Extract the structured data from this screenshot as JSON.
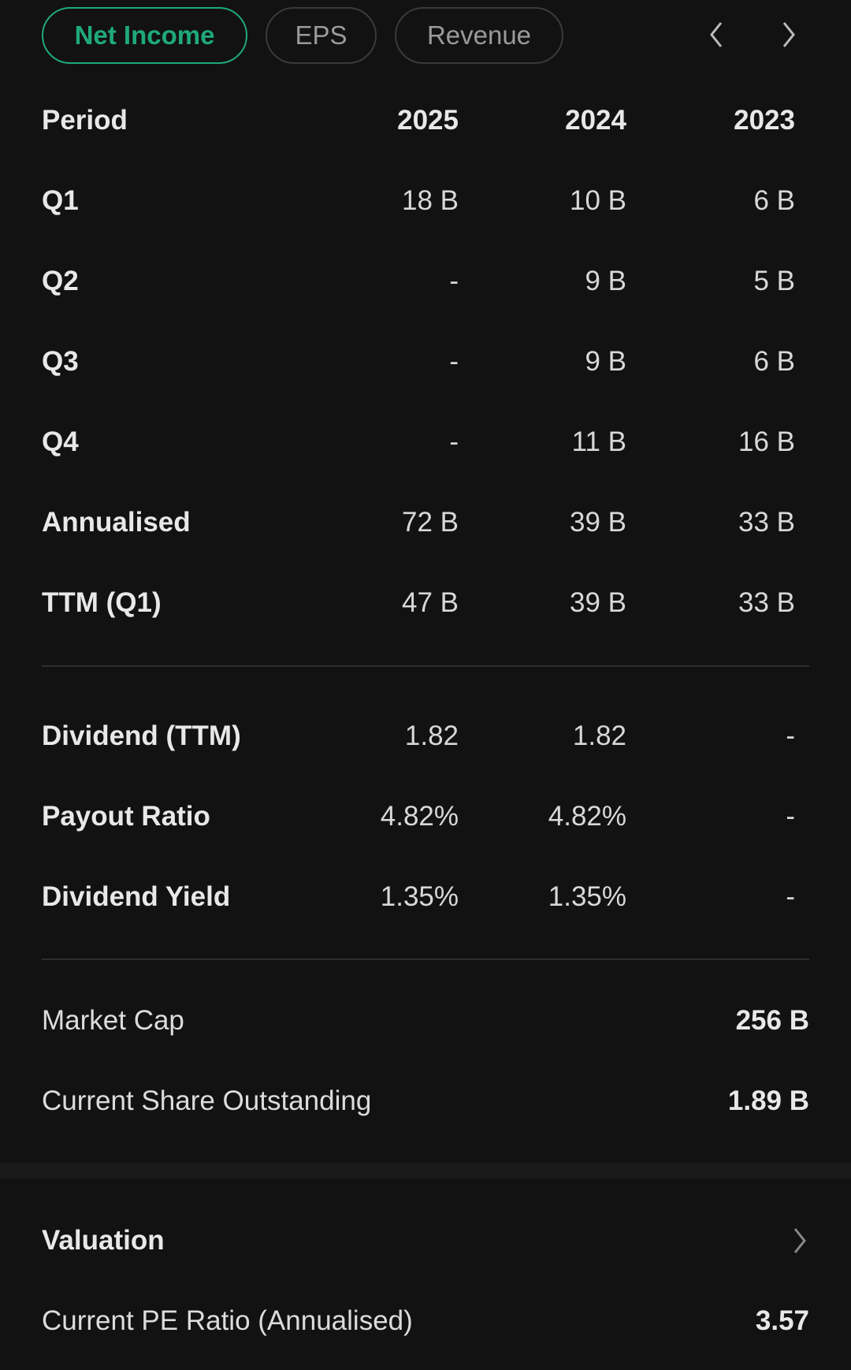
{
  "tabs": [
    {
      "label": "Net Income",
      "active": true
    },
    {
      "label": "EPS",
      "active": false
    },
    {
      "label": "Revenue",
      "active": false
    }
  ],
  "table": {
    "header": {
      "label": "Period",
      "years": [
        "2025",
        "2024",
        "2023"
      ]
    },
    "rows": [
      {
        "label": "Q1",
        "values": [
          "18 B",
          "10 B",
          "6 B"
        ]
      },
      {
        "label": "Q2",
        "values": [
          "-",
          "9 B",
          "5 B"
        ]
      },
      {
        "label": "Q3",
        "values": [
          "-",
          "9 B",
          "6 B"
        ]
      },
      {
        "label": "Q4",
        "values": [
          "-",
          "11 B",
          "16 B"
        ]
      },
      {
        "label": "Annualised",
        "values": [
          "72 B",
          "39 B",
          "33 B"
        ]
      },
      {
        "label": "TTM (Q1)",
        "values": [
          "47 B",
          "39 B",
          "33 B"
        ]
      }
    ],
    "dividend_rows": [
      {
        "label": "Dividend (TTM)",
        "values": [
          "1.82",
          "1.82",
          "-"
        ]
      },
      {
        "label": "Payout Ratio",
        "values": [
          "4.82%",
          "4.82%",
          "-"
        ]
      },
      {
        "label": "Dividend Yield",
        "values": [
          "1.35%",
          "1.35%",
          "-"
        ]
      }
    ]
  },
  "summary": [
    {
      "label": "Market Cap",
      "value": "256 B"
    },
    {
      "label": "Current Share Outstanding",
      "value": "1.89 B"
    }
  ],
  "valuation": {
    "title": "Valuation",
    "items": [
      {
        "label": "Current PE Ratio (Annualised)",
        "value": "3.57"
      }
    ]
  },
  "colors": {
    "accent": "#1fa97a",
    "background": "#121212"
  }
}
